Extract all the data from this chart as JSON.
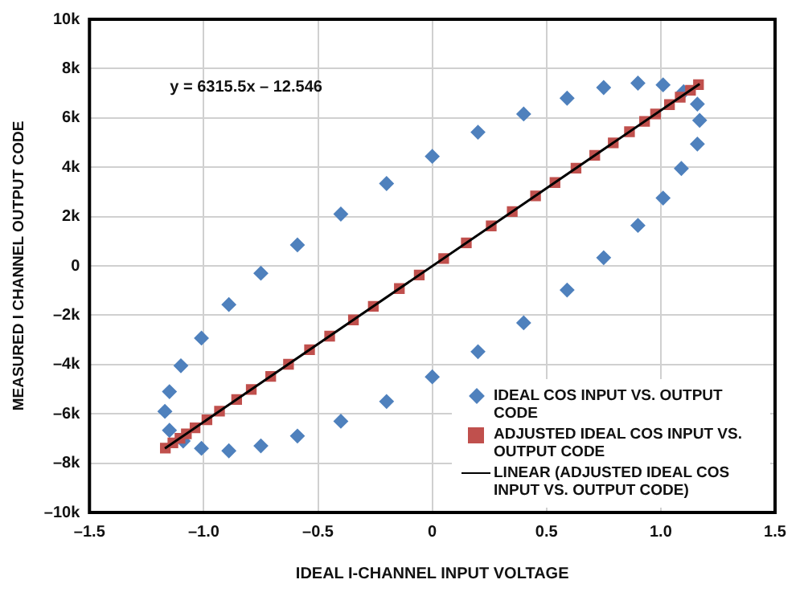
{
  "chart_data": {
    "type": "scatter",
    "xlabel": "IDEAL I-CHANNEL INPUT VOLTAGE",
    "ylabel": "MEASURED I CHANNEL OUTPUT CODE",
    "annotations": [
      "y = 6315.5x – 12.546"
    ],
    "xlim": [
      -1.5,
      1.5
    ],
    "xticks": [
      {
        "value": -1.5,
        "label": "–1.5"
      },
      {
        "value": -1,
        "label": "–1.0"
      },
      {
        "value": -0.5,
        "label": "–0.5"
      },
      0,
      0.5,
      {
        "value": 1,
        "label": "1.0"
      },
      1.5
    ],
    "ylim": [
      -10000,
      10000
    ],
    "yticks": [
      {
        "value": -10000,
        "label": "–10k"
      },
      {
        "value": -8000,
        "label": "–8k"
      },
      {
        "value": -6000,
        "label": "–6k"
      },
      {
        "value": -4000,
        "label": "–4k"
      },
      {
        "value": -2000,
        "label": "–2k"
      },
      0,
      {
        "value": 2000,
        "label": "2k"
      },
      {
        "value": 4000,
        "label": "4k"
      },
      {
        "value": 6000,
        "label": "6k"
      },
      {
        "value": 8000,
        "label": "8k"
      },
      {
        "value": 10000,
        "label": "10k"
      }
    ],
    "grid": true,
    "legend": "bottom right",
    "series": [
      {
        "name": "IDEAL COS INPUT VS. OUTPUT CODE",
        "color": "#4f81bd",
        "marker": "diamond",
        "x": [
          0,
          -0.2,
          -0.4,
          -0.59,
          -0.75,
          -0.89,
          -1.01,
          -1.1,
          -1.15,
          -1.17,
          -1.15,
          -1.09,
          -1.01,
          -0.89,
          -0.75,
          -0.59,
          -0.4,
          -0.2,
          0,
          0.2,
          0.4,
          0.59,
          0.75,
          0.9,
          1.01,
          1.09,
          1.16,
          1.17,
          1.16,
          1.1,
          1.01,
          0.9,
          0.75,
          0.59,
          0.4,
          0.2
        ],
        "values": [
          4440,
          3340,
          2100,
          850,
          -300,
          -1570,
          -2930,
          -4050,
          -5100,
          -5900,
          -6670,
          -7100,
          -7400,
          -7500,
          -7300,
          -6900,
          -6300,
          -5500,
          -4500,
          -3480,
          -2310,
          -980,
          330,
          1640,
          2750,
          3950,
          4940,
          5900,
          6560,
          7060,
          7340,
          7410,
          7230,
          6800,
          6160,
          5420
        ]
      },
      {
        "name": "ADJUSTED IDEAL COS INPUT VS. OUTPUT CODE",
        "color": "#c0504d",
        "marker": "square",
        "x": [
          -1.168,
          -1.135,
          -1.104,
          -1.076,
          -1.038,
          -0.986,
          -0.931,
          -0.856,
          -0.792,
          -0.707,
          -0.629,
          -0.537,
          -0.449,
          -0.345,
          -0.258,
          -0.144,
          -0.057,
          0.05,
          0.149,
          0.258,
          0.35,
          0.452,
          0.537,
          0.629,
          0.711,
          0.792,
          0.863,
          0.929,
          0.977,
          1.038,
          1.085,
          1.13,
          1.165
        ],
        "values": [
          -7390,
          -7180,
          -6990,
          -6810,
          -6570,
          -6240,
          -5890,
          -5420,
          -5010,
          -4480,
          -3990,
          -3400,
          -2850,
          -2190,
          -1640,
          -920,
          -370,
          300,
          930,
          1620,
          2200,
          2840,
          3380,
          3960,
          4480,
          4990,
          5440,
          5860,
          6160,
          6540,
          6840,
          7120,
          7350
        ]
      },
      {
        "name": "LINEAR (ADJUSTED IDEAL COS INPUT VS. OUTPUT CODE)",
        "type": "line",
        "color": "#000000",
        "marker": "none",
        "x": [
          -1.17,
          1.17
        ],
        "values": [
          -7400,
          7380
        ]
      }
    ]
  }
}
